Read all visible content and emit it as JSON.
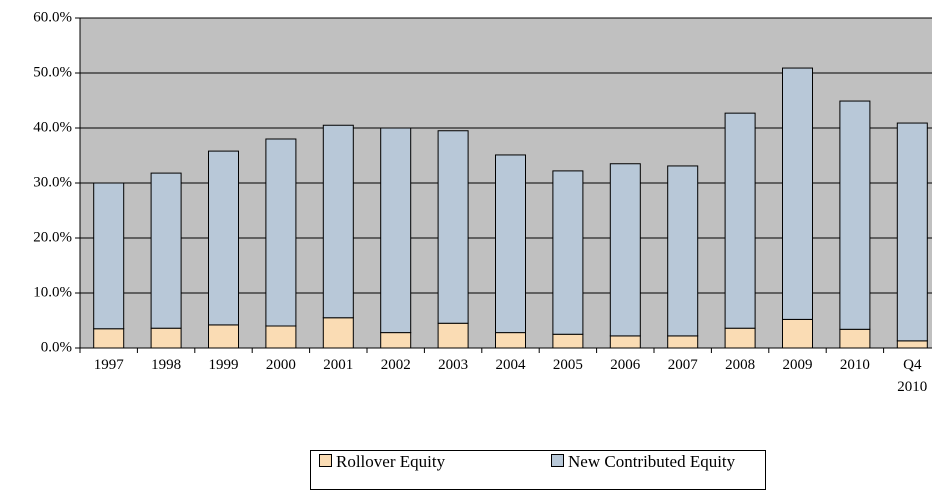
{
  "chart_data": {
    "type": "stacked_bar",
    "categories": [
      "1997",
      "1998",
      "1999",
      "2000",
      "2001",
      "2002",
      "2003",
      "2004",
      "2005",
      "2006",
      "2007",
      "2008",
      "2009",
      "2010",
      "Q4 2010"
    ],
    "series": [
      {
        "name": "Rollover Equity",
        "color": "#fadcb4",
        "values": [
          3.5,
          3.6,
          4.2,
          4.0,
          5.5,
          2.8,
          4.5,
          2.8,
          2.5,
          2.2,
          2.2,
          3.6,
          5.2,
          3.4,
          1.3
        ]
      },
      {
        "name": "New Contributed Equity",
        "color": "#b8c8d8",
        "values": [
          26.5,
          28.2,
          31.6,
          34.0,
          35.0,
          37.2,
          35.0,
          32.3,
          29.7,
          31.3,
          30.9,
          39.1,
          45.7,
          41.5,
          39.6
        ]
      }
    ],
    "ylim": [
      0,
      60
    ],
    "yticks": [
      {
        "value": 0,
        "label": "0.0%"
      },
      {
        "value": 10,
        "label": "10.0%"
      },
      {
        "value": 20,
        "label": "20.0%"
      },
      {
        "value": 30,
        "label": "30.0%"
      },
      {
        "value": 40,
        "label": "40.0%"
      },
      {
        "value": 50,
        "label": "50.0%"
      },
      {
        "value": 60,
        "label": "60.0%"
      }
    ],
    "grid": true,
    "legend": "bottom"
  }
}
